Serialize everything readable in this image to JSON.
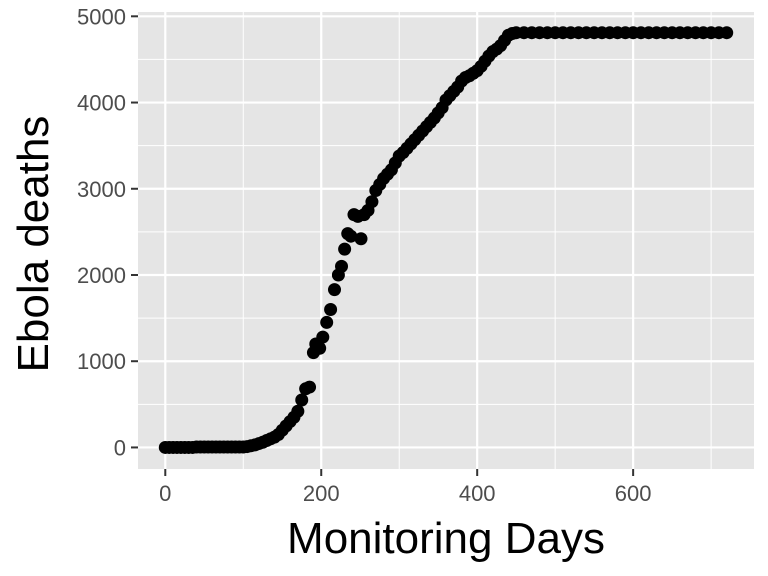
{
  "chart_data": {
    "type": "scatter",
    "title": "",
    "xlabel": "Monitoring Days",
    "ylabel": "Ebola deaths",
    "xlim": [
      -35,
      755
    ],
    "ylim": [
      -250,
      5050
    ],
    "x_ticks": [
      0,
      200,
      400,
      600
    ],
    "y_ticks": [
      0,
      1000,
      2000,
      3000,
      4000,
      5000
    ],
    "grid": true,
    "legend": "none",
    "colors": {
      "panel": "#e5e5e5",
      "grid": "#ffffff",
      "point": "#000000",
      "tick_text": "#4d4d4d",
      "tick_mark": "#333333"
    },
    "series": [
      {
        "points": [
          [
            0,
            0
          ],
          [
            5,
            0
          ],
          [
            10,
            0
          ],
          [
            15,
            0
          ],
          [
            20,
            0
          ],
          [
            25,
            0
          ],
          [
            30,
            0
          ],
          [
            35,
            0
          ],
          [
            40,
            5
          ],
          [
            45,
            5
          ],
          [
            50,
            5
          ],
          [
            55,
            5
          ],
          [
            60,
            5
          ],
          [
            65,
            5
          ],
          [
            70,
            5
          ],
          [
            75,
            5
          ],
          [
            80,
            5
          ],
          [
            85,
            5
          ],
          [
            90,
            5
          ],
          [
            95,
            5
          ],
          [
            100,
            5
          ],
          [
            105,
            10
          ],
          [
            110,
            20
          ],
          [
            115,
            30
          ],
          [
            120,
            45
          ],
          [
            125,
            60
          ],
          [
            130,
            80
          ],
          [
            135,
            100
          ],
          [
            140,
            120
          ],
          [
            145,
            150
          ],
          [
            150,
            200
          ],
          [
            155,
            250
          ],
          [
            160,
            300
          ],
          [
            165,
            350
          ],
          [
            170,
            420
          ],
          [
            175,
            550
          ],
          [
            180,
            680
          ],
          [
            185,
            700
          ],
          [
            190,
            1100
          ],
          [
            193,
            1200
          ],
          [
            198,
            1150
          ],
          [
            202,
            1280
          ],
          [
            207,
            1450
          ],
          [
            212,
            1600
          ],
          [
            217,
            1830
          ],
          [
            222,
            2000
          ],
          [
            226,
            2100
          ],
          [
            230,
            2300
          ],
          [
            234,
            2480
          ],
          [
            238,
            2450
          ],
          [
            242,
            2700
          ],
          [
            247,
            2680
          ],
          [
            251,
            2420
          ],
          [
            255,
            2700
          ],
          [
            260,
            2750
          ],
          [
            265,
            2850
          ],
          [
            270,
            2980
          ],
          [
            275,
            3050
          ],
          [
            280,
            3120
          ],
          [
            285,
            3170
          ],
          [
            290,
            3220
          ],
          [
            295,
            3300
          ],
          [
            300,
            3380
          ],
          [
            305,
            3420
          ],
          [
            310,
            3470
          ],
          [
            315,
            3520
          ],
          [
            320,
            3570
          ],
          [
            325,
            3620
          ],
          [
            330,
            3670
          ],
          [
            335,
            3720
          ],
          [
            340,
            3770
          ],
          [
            345,
            3820
          ],
          [
            350,
            3880
          ],
          [
            355,
            3940
          ],
          [
            360,
            4030
          ],
          [
            365,
            4080
          ],
          [
            370,
            4130
          ],
          [
            375,
            4180
          ],
          [
            380,
            4250
          ],
          [
            385,
            4290
          ],
          [
            390,
            4310
          ],
          [
            395,
            4340
          ],
          [
            400,
            4370
          ],
          [
            405,
            4420
          ],
          [
            410,
            4480
          ],
          [
            415,
            4540
          ],
          [
            420,
            4590
          ],
          [
            425,
            4620
          ],
          [
            430,
            4660
          ],
          [
            435,
            4720
          ],
          [
            440,
            4780
          ],
          [
            445,
            4800
          ],
          [
            450,
            4810
          ],
          [
            460,
            4810
          ],
          [
            470,
            4810
          ],
          [
            480,
            4810
          ],
          [
            490,
            4810
          ],
          [
            500,
            4810
          ],
          [
            510,
            4810
          ],
          [
            520,
            4810
          ],
          [
            530,
            4810
          ],
          [
            540,
            4810
          ],
          [
            550,
            4810
          ],
          [
            560,
            4810
          ],
          [
            570,
            4810
          ],
          [
            580,
            4810
          ],
          [
            590,
            4810
          ],
          [
            600,
            4810
          ],
          [
            610,
            4810
          ],
          [
            620,
            4810
          ],
          [
            630,
            4810
          ],
          [
            640,
            4810
          ],
          [
            650,
            4810
          ],
          [
            660,
            4810
          ],
          [
            670,
            4810
          ],
          [
            680,
            4810
          ],
          [
            690,
            4810
          ],
          [
            700,
            4810
          ],
          [
            710,
            4810
          ],
          [
            720,
            4810
          ]
        ]
      }
    ]
  }
}
